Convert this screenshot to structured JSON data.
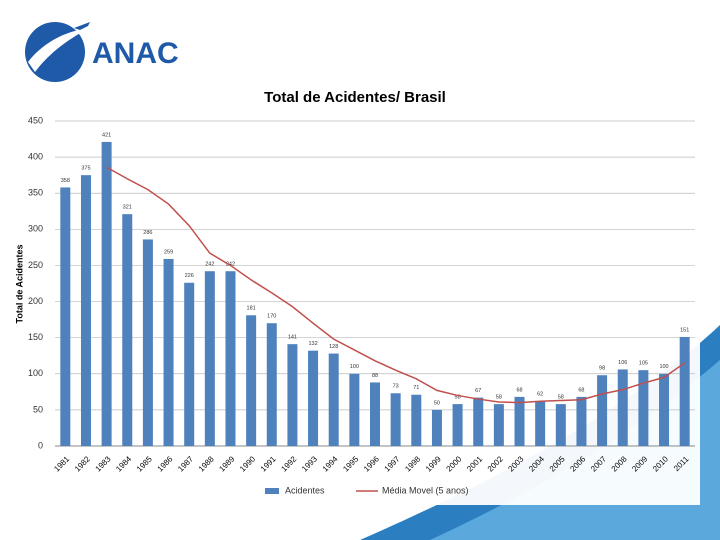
{
  "logo": "ANAC",
  "chart_data": {
    "type": "bar",
    "title": "Total de Acidentes/ Brasil",
    "y_label": "Total de Acidentes",
    "categories": [
      "1981",
      "1982",
      "1983",
      "1984",
      "1985",
      "1986",
      "1987",
      "1988",
      "1989",
      "1990",
      "1991",
      "1992",
      "1993",
      "1994",
      "1995",
      "1996",
      "1997",
      "1998",
      "1999",
      "2000",
      "2001",
      "2002",
      "2003",
      "2004",
      "2005",
      "2006",
      "2007",
      "2008",
      "2009",
      "2010",
      "2011"
    ],
    "series": [
      {
        "name": "Acidentes",
        "type": "bar",
        "color": "#4f81bd",
        "values": [
          358,
          375,
          421,
          321,
          286,
          259,
          226,
          242,
          242,
          181,
          170,
          141,
          132,
          128,
          100,
          88,
          73,
          71,
          50,
          58,
          67,
          58,
          68,
          62,
          58,
          68,
          98,
          106,
          105,
          100,
          151
        ]
      },
      {
        "name": "Média Movel (5 anos)",
        "type": "line",
        "color": "#c0504d",
        "values": [
          null,
          null,
          386,
          370,
          355,
          335,
          305,
          267,
          250,
          230,
          212,
          193,
          170,
          148,
          133,
          118,
          105,
          93,
          77,
          70,
          65,
          61,
          60,
          62,
          63,
          64,
          72,
          78,
          87,
          95,
          115
        ]
      }
    ],
    "ylim": [
      0,
      450
    ],
    "yticks": [
      0,
      50,
      100,
      150,
      200,
      250,
      300,
      350,
      400,
      450
    ],
    "grid": true,
    "legend": "bottom"
  }
}
